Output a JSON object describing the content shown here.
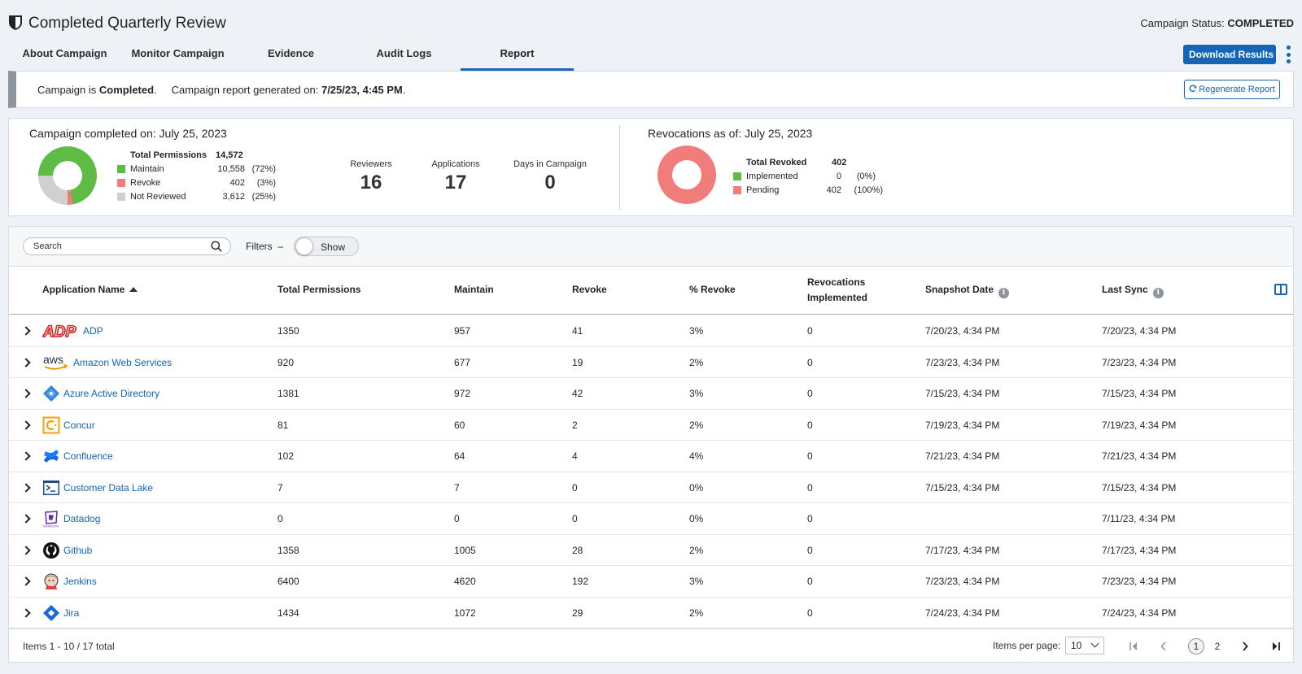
{
  "header": {
    "title": "Completed Quarterly Review",
    "status_label": "Campaign Status:",
    "status_value": "COMPLETED"
  },
  "tabs": [
    {
      "label": "About Campaign"
    },
    {
      "label": "Monitor Campaign"
    },
    {
      "label": "Evidence"
    },
    {
      "label": "Audit Logs"
    },
    {
      "label": "Report",
      "active": true
    }
  ],
  "actions": {
    "download_label": "Download Results",
    "regenerate_label": "Regenerate Report"
  },
  "banner": {
    "prefix": "Campaign is ",
    "state": "Completed",
    "suffix": ".",
    "report_label": "Campaign report generated on: ",
    "report_date": "7/25/23, 4:45 PM",
    "report_suffix": "."
  },
  "summary": {
    "completed_title": "Campaign completed on: July 25, 2023",
    "total_label": "Total Permissions",
    "total_value": "14,572",
    "legend": [
      {
        "label": "Maintain",
        "value": "10,558",
        "pct": "(72%)",
        "color": "#5dbb46",
        "fraction": 0.72
      },
      {
        "label": "Revoke",
        "value": "402",
        "pct": "(3%)",
        "color": "#f07c7c",
        "fraction": 0.03
      },
      {
        "label": "Not Reviewed",
        "value": "3,612",
        "pct": "(25%)",
        "color": "#d0d0d0",
        "fraction": 0.25
      }
    ],
    "stats": [
      {
        "label": "Reviewers",
        "value": "16"
      },
      {
        "label": "Applications",
        "value": "17"
      },
      {
        "label": "Days in Campaign",
        "value": "0"
      }
    ],
    "revocations_title": "Revocations as of: July 25, 2023",
    "revoked_label": "Total Revoked",
    "revoked_value": "402",
    "revocation_legend": [
      {
        "label": "Implemented",
        "value": "0",
        "pct": "(0%)",
        "color": "#5dbb46",
        "fraction": 0
      },
      {
        "label": "Pending",
        "value": "402",
        "pct": "(100%)",
        "color": "#f07c7c",
        "fraction": 1
      }
    ]
  },
  "toolbar": {
    "search_placeholder": "Search",
    "filters_label": "Filters",
    "filters_dash": "–",
    "toggle_label": "Show"
  },
  "table": {
    "columns": {
      "app": "Application Name",
      "total": "Total Permissions",
      "maintain": "Maintain",
      "revoke": "Revoke",
      "pct": "% Revoke",
      "impl_1": "Revocations",
      "impl_2": "Implemented",
      "snapshot": "Snapshot Date",
      "sync": "Last Sync"
    },
    "rows": [
      {
        "app": "ADP",
        "icon": "adp-logo-icon",
        "total": "1350",
        "maintain": "957",
        "revoke": "41",
        "pct": "3%",
        "impl": "0",
        "snapshot": "7/20/23, 4:34 PM",
        "sync": "7/20/23, 4:34 PM"
      },
      {
        "app": "Amazon Web Services",
        "icon": "aws-logo-icon",
        "total": "920",
        "maintain": "677",
        "revoke": "19",
        "pct": "2%",
        "impl": "0",
        "snapshot": "7/23/23, 4:34 PM",
        "sync": "7/23/23, 4:34 PM"
      },
      {
        "app": "Azure Active Directory",
        "icon": "azure-ad-logo-icon",
        "total": "1381",
        "maintain": "972",
        "revoke": "42",
        "pct": "3%",
        "impl": "0",
        "snapshot": "7/15/23, 4:34 PM",
        "sync": "7/15/23, 4:34 PM"
      },
      {
        "app": "Concur",
        "icon": "concur-logo-icon",
        "total": "81",
        "maintain": "60",
        "revoke": "2",
        "pct": "2%",
        "impl": "0",
        "snapshot": "7/19/23, 4:34 PM",
        "sync": "7/19/23, 4:34 PM"
      },
      {
        "app": "Confluence",
        "icon": "confluence-logo-icon",
        "total": "102",
        "maintain": "64",
        "revoke": "4",
        "pct": "4%",
        "impl": "0",
        "snapshot": "7/21/23, 4:34 PM",
        "sync": "7/21/23, 4:34 PM"
      },
      {
        "app": "Customer Data Lake",
        "icon": "terminal-icon",
        "total": "7",
        "maintain": "7",
        "revoke": "0",
        "pct": "0%",
        "impl": "0",
        "snapshot": "7/15/23, 4:34 PM",
        "sync": "7/15/23, 4:34 PM"
      },
      {
        "app": "Datadog",
        "icon": "datadog-logo-icon",
        "total": "0",
        "maintain": "0",
        "revoke": "0",
        "pct": "0%",
        "impl": "0",
        "snapshot": "",
        "sync": "7/11/23, 4:34 PM"
      },
      {
        "app": "Github",
        "icon": "github-logo-icon",
        "total": "1358",
        "maintain": "1005",
        "revoke": "28",
        "pct": "2%",
        "impl": "0",
        "snapshot": "7/17/23, 4:34 PM",
        "sync": "7/17/23, 4:34 PM"
      },
      {
        "app": "Jenkins",
        "icon": "jenkins-logo-icon",
        "total": "6400",
        "maintain": "4620",
        "revoke": "192",
        "pct": "3%",
        "impl": "0",
        "snapshot": "7/23/23, 4:34 PM",
        "sync": "7/23/23, 4:34 PM"
      },
      {
        "app": "Jira",
        "icon": "jira-logo-icon",
        "total": "1434",
        "maintain": "1072",
        "revoke": "29",
        "pct": "2%",
        "impl": "0",
        "snapshot": "7/24/23, 4:34 PM",
        "sync": "7/24/23, 4:34 PM"
      }
    ]
  },
  "footer": {
    "items_info": "Items 1 - 10 / 17 total",
    "ipp_label": "Items per page:",
    "ipp_value": "10",
    "pages": [
      "1",
      "2"
    ],
    "current_page": "1"
  },
  "colors": {
    "accent": "#1266b5",
    "maintain": "#5dbb46",
    "revoke": "#f07c7c",
    "not_reviewed": "#d0d0d0"
  }
}
